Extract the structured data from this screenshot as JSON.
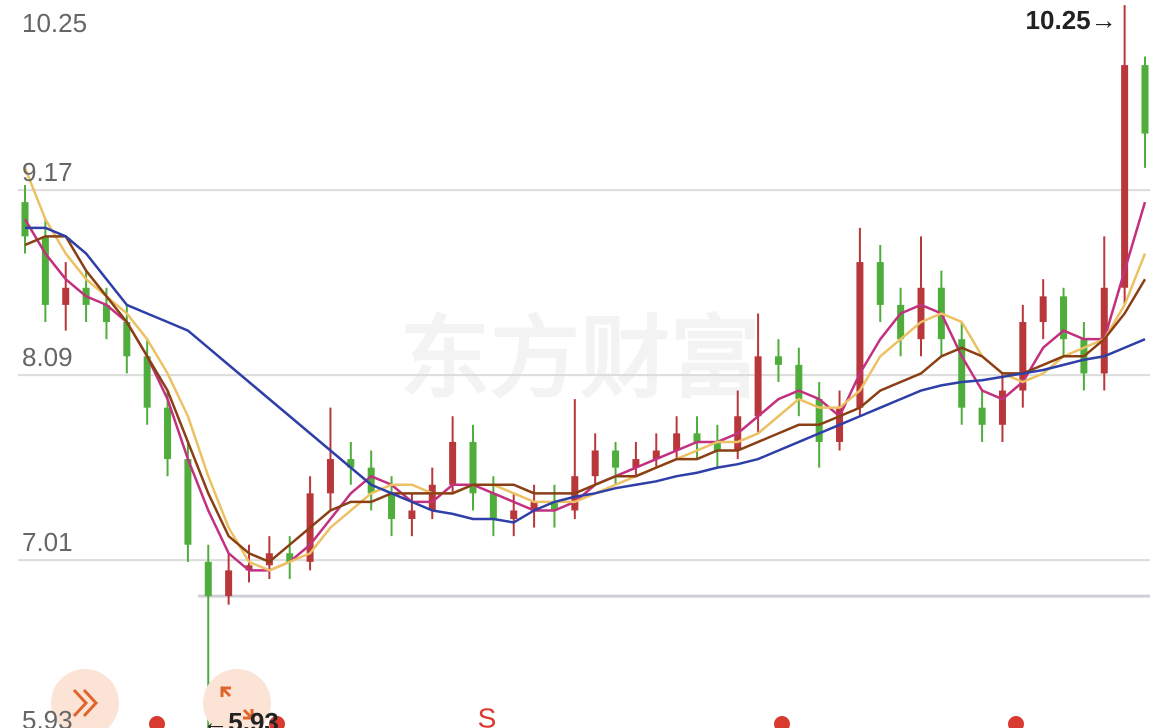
{
  "chart_data": {
    "type": "candlestick",
    "watermark": "东方财富",
    "categories": [
      null,
      null,
      null,
      null,
      null,
      null,
      null,
      null,
      null,
      null,
      null,
      null,
      null,
      null,
      null,
      null,
      null,
      null,
      null,
      null,
      null,
      null,
      null,
      null,
      null,
      null,
      null,
      null,
      null,
      null,
      null,
      null,
      null,
      null,
      null,
      null,
      null,
      null,
      null,
      null,
      null,
      null,
      null,
      null,
      null,
      null,
      null,
      null,
      null,
      null,
      null,
      null,
      null,
      null,
      null,
      null
    ],
    "open": [
      9.1,
      8.9,
      8.5,
      8.6,
      8.5,
      8.4,
      8.2,
      7.9,
      7.6,
      7.0,
      6.8,
      6.95,
      6.98,
      7.05,
      7.0,
      7.4,
      7.6,
      7.55,
      7.4,
      7.25,
      7.3,
      7.45,
      7.7,
      7.4,
      7.25,
      7.3,
      7.35,
      7.3,
      7.5,
      7.65,
      7.55,
      7.6,
      7.65,
      7.75,
      7.7,
      7.65,
      7.85,
      8.2,
      8.15,
      7.95,
      7.7,
      7.9,
      8.75,
      8.5,
      8.3,
      8.6,
      8.3,
      7.9,
      7.8,
      8.0,
      8.4,
      8.55,
      8.3,
      8.1,
      8.6,
      9.9
    ],
    "high": [
      9.2,
      9.0,
      8.75,
      8.7,
      8.6,
      8.5,
      8.3,
      8.0,
      7.7,
      7.1,
      7.05,
      7.1,
      7.15,
      7.15,
      7.5,
      7.9,
      7.7,
      7.65,
      7.5,
      7.4,
      7.55,
      7.85,
      7.8,
      7.5,
      7.4,
      7.45,
      7.45,
      7.95,
      7.75,
      7.7,
      7.7,
      7.75,
      7.85,
      7.85,
      7.8,
      8.0,
      8.45,
      8.3,
      8.25,
      8.05,
      8.0,
      8.95,
      8.85,
      8.6,
      8.9,
      8.7,
      8.4,
      8.0,
      8.1,
      8.5,
      8.65,
      8.6,
      8.4,
      8.9,
      10.25,
      9.95
    ],
    "low": [
      8.8,
      8.4,
      8.35,
      8.4,
      8.3,
      8.1,
      7.8,
      7.5,
      7.0,
      5.93,
      6.75,
      6.88,
      6.9,
      6.9,
      6.95,
      7.3,
      7.45,
      7.3,
      7.15,
      7.15,
      7.25,
      7.4,
      7.3,
      7.15,
      7.15,
      7.2,
      7.2,
      7.25,
      7.45,
      7.45,
      7.5,
      7.55,
      7.6,
      7.6,
      7.55,
      7.6,
      7.75,
      8.05,
      7.85,
      7.55,
      7.65,
      7.85,
      8.4,
      8.2,
      8.2,
      8.2,
      7.8,
      7.7,
      7.7,
      7.9,
      8.3,
      8.2,
      8.0,
      8.0,
      8.5,
      9.3
    ],
    "close": [
      8.9,
      8.5,
      8.6,
      8.5,
      8.4,
      8.2,
      7.9,
      7.6,
      7.1,
      6.8,
      6.95,
      6.98,
      7.05,
      7.0,
      7.4,
      7.6,
      7.55,
      7.4,
      7.25,
      7.3,
      7.45,
      7.7,
      7.4,
      7.25,
      7.3,
      7.35,
      7.3,
      7.5,
      7.65,
      7.55,
      7.6,
      7.65,
      7.75,
      7.7,
      7.65,
      7.85,
      8.2,
      8.15,
      7.95,
      7.7,
      7.9,
      8.75,
      8.5,
      8.3,
      8.6,
      8.3,
      7.9,
      7.8,
      8.0,
      8.4,
      8.55,
      8.3,
      8.1,
      8.6,
      9.9,
      9.5
    ],
    "up_color": "#b8373a",
    "down_color": "#4fae3b",
    "series": [
      {
        "color": "#c2307f",
        "values": [
          9.0,
          8.8,
          8.65,
          8.55,
          8.5,
          8.4,
          8.2,
          7.95,
          7.6,
          7.3,
          7.05,
          6.95,
          6.95,
          7.0,
          7.1,
          7.25,
          7.4,
          7.5,
          7.45,
          7.35,
          7.35,
          7.45,
          7.45,
          7.4,
          7.35,
          7.3,
          7.3,
          7.35,
          7.45,
          7.5,
          7.55,
          7.6,
          7.65,
          7.7,
          7.7,
          7.75,
          7.85,
          7.95,
          8.0,
          7.95,
          7.85,
          8.1,
          8.3,
          8.45,
          8.5,
          8.45,
          8.2,
          8.0,
          7.95,
          8.05,
          8.25,
          8.35,
          8.3,
          8.3,
          8.7,
          9.1
        ]
      },
      {
        "color": "#ecc163",
        "values": [
          9.3,
          9.0,
          8.8,
          8.65,
          8.55,
          8.45,
          8.3,
          8.1,
          7.85,
          7.5,
          7.2,
          7.0,
          6.95,
          7.0,
          7.05,
          7.2,
          7.3,
          7.4,
          7.45,
          7.45,
          7.4,
          7.4,
          7.45,
          7.45,
          7.4,
          7.35,
          7.35,
          7.35,
          7.4,
          7.45,
          7.5,
          7.55,
          7.6,
          7.65,
          7.7,
          7.7,
          7.75,
          7.85,
          7.95,
          7.9,
          7.9,
          8.0,
          8.2,
          8.3,
          8.4,
          8.45,
          8.4,
          8.2,
          8.1,
          8.05,
          8.1,
          8.2,
          8.25,
          8.3,
          8.5,
          8.8
        ]
      },
      {
        "color": "#8a3f14",
        "values": [
          8.85,
          8.9,
          8.9,
          8.7,
          8.55,
          8.4,
          8.2,
          8.0,
          7.7,
          7.4,
          7.15,
          7.05,
          7.0,
          7.1,
          7.2,
          7.3,
          7.35,
          7.35,
          7.4,
          7.4,
          7.4,
          7.4,
          7.45,
          7.45,
          7.45,
          7.4,
          7.4,
          7.4,
          7.45,
          7.5,
          7.5,
          7.55,
          7.6,
          7.6,
          7.65,
          7.65,
          7.7,
          7.75,
          7.8,
          7.8,
          7.85,
          7.9,
          8.0,
          8.05,
          8.1,
          8.2,
          8.25,
          8.2,
          8.1,
          8.1,
          8.15,
          8.2,
          8.2,
          8.3,
          8.45,
          8.65
        ]
      },
      {
        "color": "#2e3fa8",
        "values": [
          8.95,
          8.95,
          8.9,
          8.8,
          8.65,
          8.5,
          8.45,
          8.4,
          8.35,
          8.25,
          8.15,
          8.05,
          7.95,
          7.85,
          7.75,
          7.65,
          7.55,
          7.45,
          7.4,
          7.35,
          7.3,
          7.28,
          7.25,
          7.25,
          7.23,
          7.3,
          7.35,
          7.38,
          7.4,
          7.43,
          7.45,
          7.47,
          7.5,
          7.52,
          7.55,
          7.57,
          7.6,
          7.65,
          7.7,
          7.75,
          7.8,
          7.85,
          7.9,
          7.95,
          8.0,
          8.03,
          8.05,
          8.06,
          8.08,
          8.1,
          8.12,
          8.15,
          8.18,
          8.2,
          8.25,
          8.3
        ]
      }
    ],
    "ylim": [
      6.03,
      10.28
    ],
    "yticks": [
      10.25,
      9.17,
      8.09,
      7.01,
      5.93
    ],
    "grid": true,
    "reference_line": 6.8,
    "high_label": "10.25→",
    "low_label": "←5.93",
    "signal_label": "S"
  }
}
